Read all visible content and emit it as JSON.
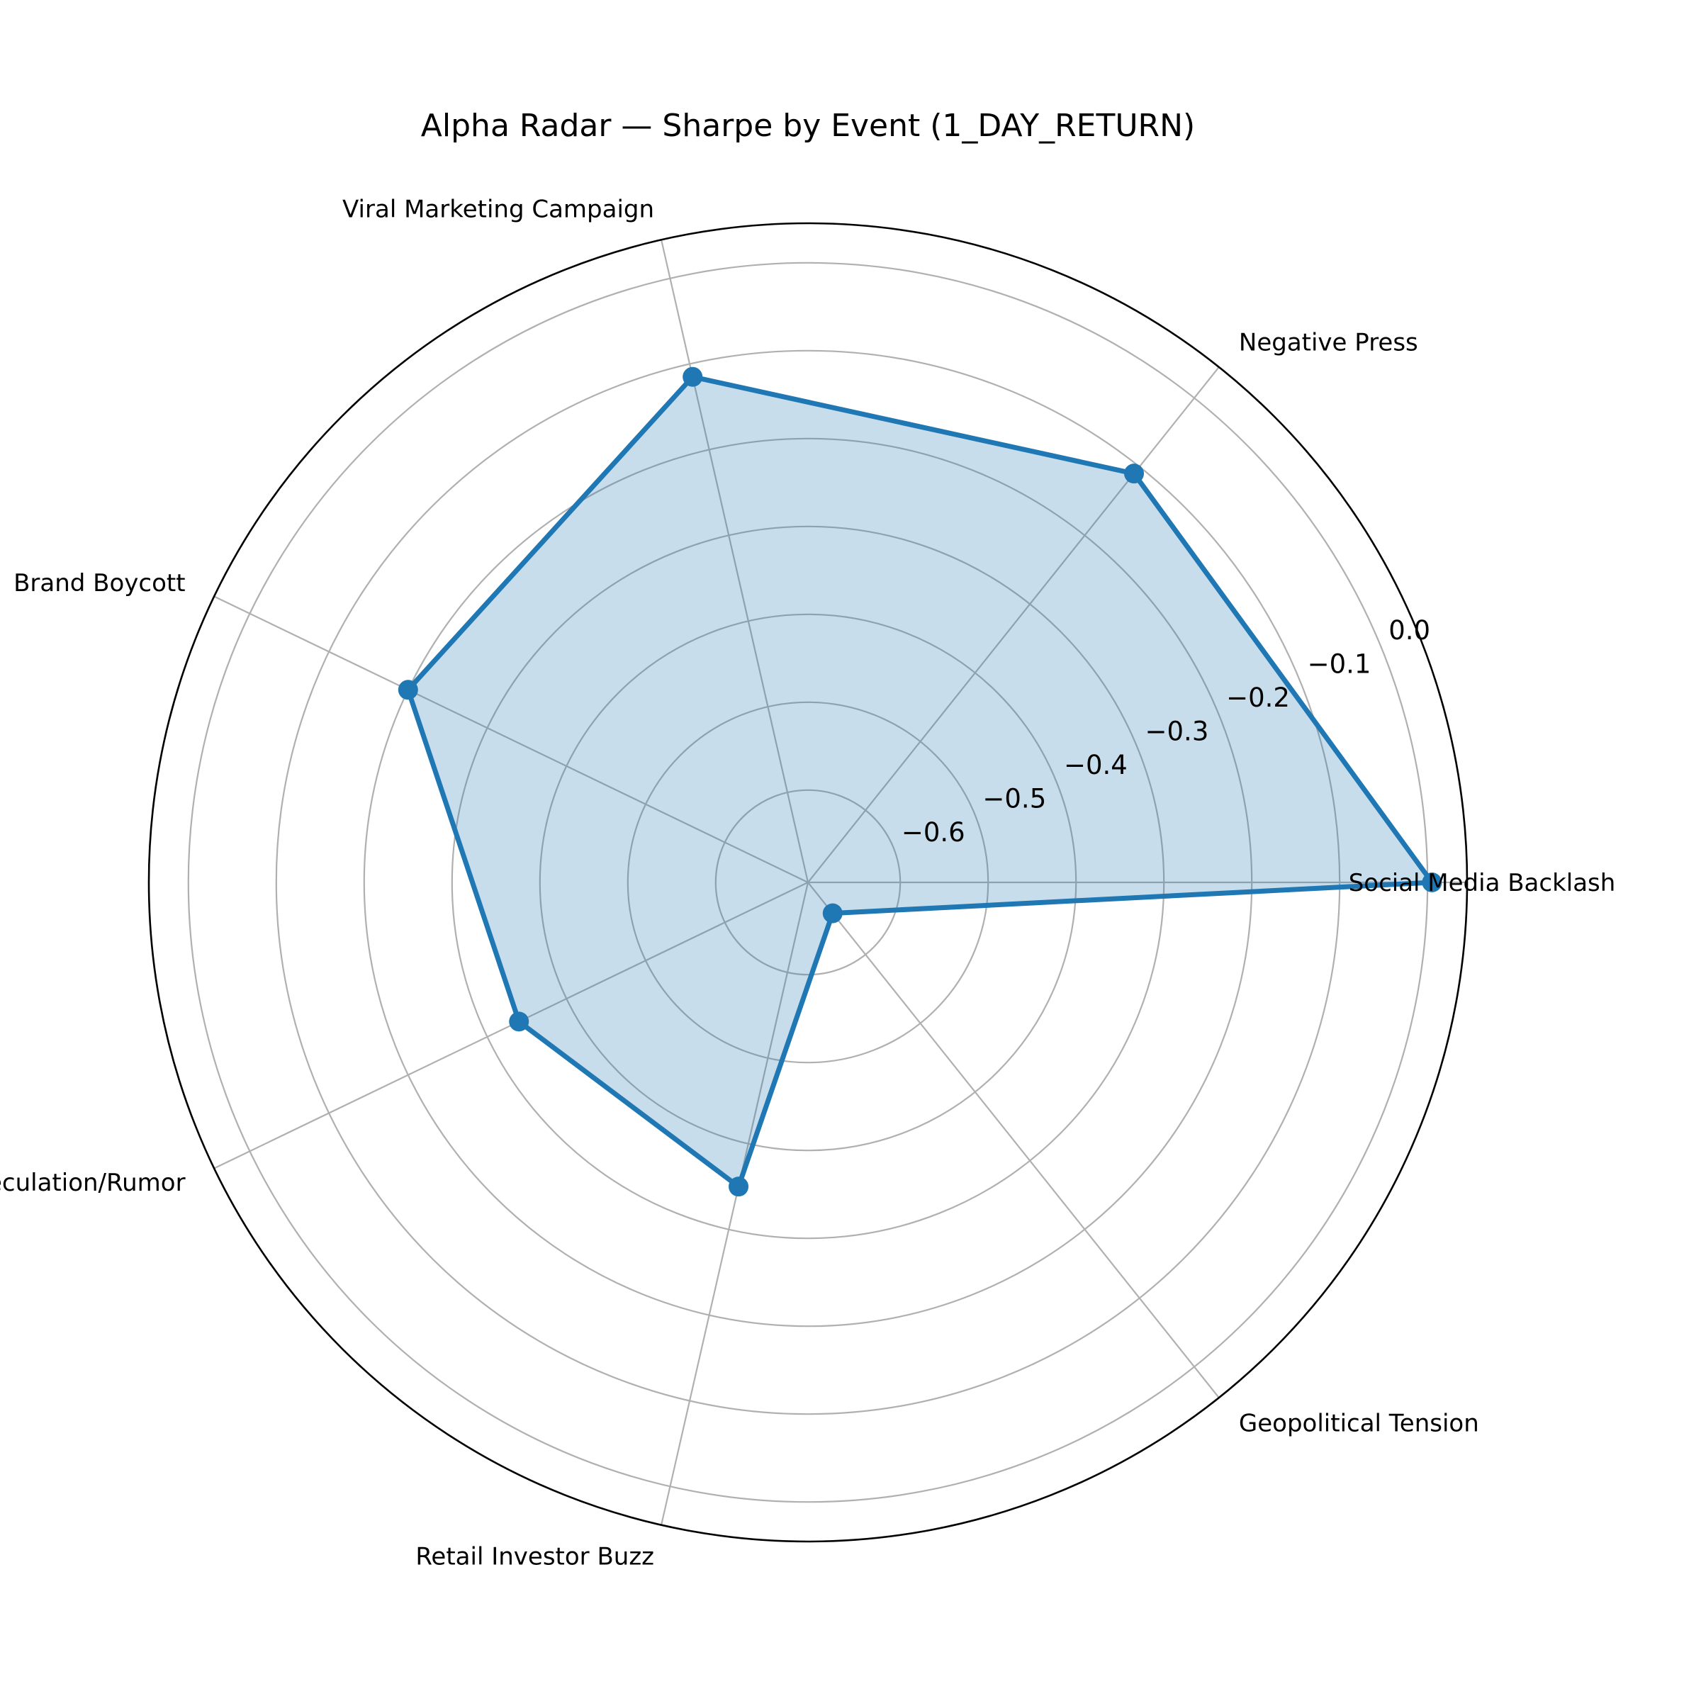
{
  "chart_data": {
    "type": "radar",
    "title": "Alpha Radar — Sharpe by Event (1_DAY_RETURN)",
    "categories": [
      "Social Media Backlash",
      "Negative Press",
      "Viral Marketing Campaign",
      "Brand Boycott",
      "Speculation/Rumor",
      "Retail Investor Buzz",
      "Geopolitical Tension"
    ],
    "series": [
      {
        "values": [
          0.005,
          -0.11,
          -0.115,
          -0.2,
          -0.34,
          -0.35,
          -0.66
        ]
      }
    ],
    "rlim": [
      -0.705,
      0.045
    ],
    "r_ticks": [
      -0.6,
      -0.5,
      -0.4,
      -0.3,
      -0.2,
      -0.1,
      0.0
    ],
    "r_tick_labels": [
      "−0.6",
      "−0.5",
      "−0.4",
      "−0.3",
      "−0.2",
      "−0.1",
      "0.0"
    ],
    "grid": true,
    "colors": {
      "line": "#1f77b4",
      "fill": "#1f77b4",
      "grid": "#b0b0b0",
      "spine": "#000000"
    }
  }
}
